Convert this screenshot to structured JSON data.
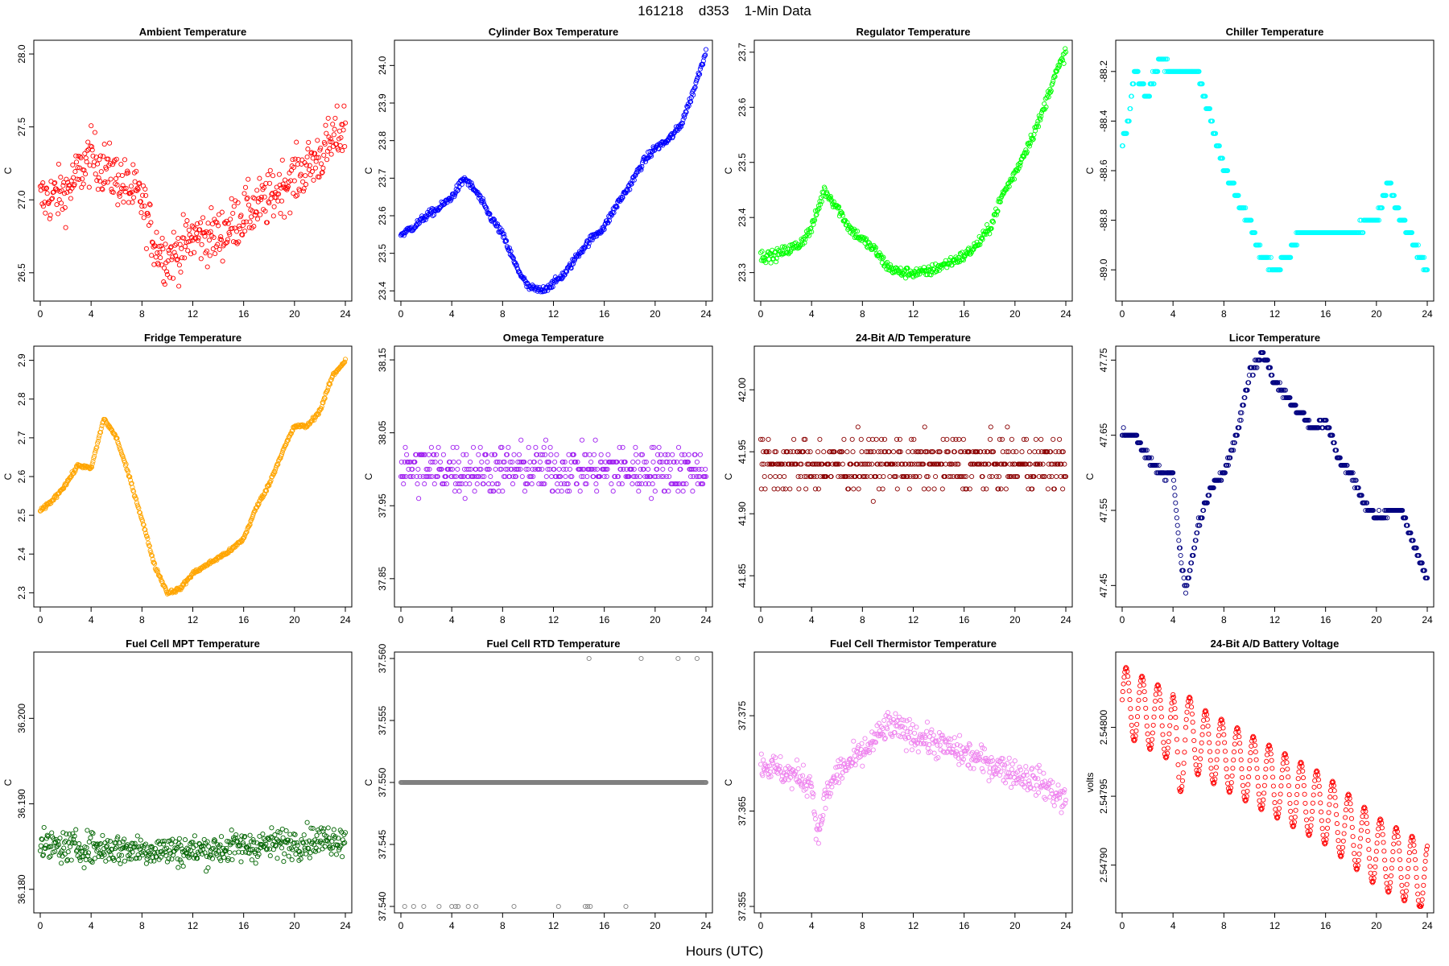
{
  "page": {
    "title": "161218    d353    1-Min Data",
    "xlabel": "Hours (UTC)"
  },
  "chart_data": [
    {
      "type": "scatter",
      "id": "ambient",
      "title": "Ambient Temperature",
      "ylabel": "C",
      "color": "#ff0000",
      "xlim": [
        0,
        24
      ],
      "ylim": [
        26.35,
        28.05
      ],
      "xticks": [
        0,
        4,
        8,
        12,
        16,
        20,
        24
      ],
      "yticks": [
        26.5,
        27.0,
        27.5,
        28.0
      ],
      "ytick_labels": [
        "26.5",
        "27.0",
        "27.5",
        "28.0"
      ],
      "series": [
        {
          "name": "Ambient",
          "x": [
            0,
            2,
            4,
            6,
            8,
            9,
            10,
            11,
            12,
            14,
            16,
            18,
            19,
            20,
            22,
            24
          ],
          "y": [
            27.0,
            27.05,
            27.3,
            27.15,
            27.0,
            26.7,
            26.6,
            26.65,
            26.75,
            26.75,
            26.9,
            27.0,
            27.1,
            27.15,
            27.3,
            27.5
          ]
        }
      ],
      "noise": 0.22,
      "quant": 0,
      "clamp": [
        26.35,
        28.05
      ]
    },
    {
      "type": "scatter",
      "id": "cylinder",
      "title": "Cylinder Box Temperature",
      "ylabel": "C",
      "color": "#0000ff",
      "xlim": [
        0,
        24
      ],
      "ylim": [
        23.39,
        24.05
      ],
      "xticks": [
        0,
        4,
        8,
        12,
        16,
        20,
        24
      ],
      "yticks": [
        23.4,
        23.5,
        23.6,
        23.7,
        23.8,
        23.9,
        24.0
      ],
      "ytick_labels": [
        "23.4",
        "23.5",
        "23.6",
        "23.7",
        "23.8",
        "23.9",
        "24.0"
      ],
      "series": [
        {
          "name": "Cylinder Box",
          "x": [
            0,
            1,
            2,
            3,
            4,
            5,
            6,
            7,
            8,
            9,
            10,
            11,
            12,
            13,
            14,
            15,
            16,
            17,
            18,
            19,
            20,
            21,
            22,
            23,
            24
          ],
          "y": [
            23.55,
            23.57,
            23.6,
            23.62,
            23.65,
            23.7,
            23.66,
            23.6,
            23.55,
            23.47,
            23.41,
            23.4,
            23.42,
            23.45,
            23.5,
            23.54,
            23.57,
            23.63,
            23.68,
            23.74,
            23.78,
            23.8,
            23.84,
            23.93,
            24.04
          ]
        }
      ],
      "noise": 0.012,
      "quant": 0,
      "clamp": [
        23.39,
        24.05
      ]
    },
    {
      "type": "scatter",
      "id": "regulator",
      "title": "Regulator Temperature",
      "ylabel": "C",
      "color": "#00ff00",
      "xlim": [
        0,
        24
      ],
      "ylim": [
        23.26,
        23.71
      ],
      "xticks": [
        0,
        4,
        8,
        12,
        16,
        20,
        24
      ],
      "yticks": [
        23.3,
        23.4,
        23.5,
        23.6,
        23.7
      ],
      "ytick_labels": [
        "23.3",
        "23.4",
        "23.5",
        "23.6",
        "23.7"
      ],
      "series": [
        {
          "name": "Regulator",
          "x": [
            0,
            1,
            2,
            3,
            4,
            5,
            6,
            7,
            8,
            9,
            10,
            11,
            12,
            13,
            14,
            15,
            16,
            17,
            18,
            19,
            20,
            21,
            22,
            23,
            24
          ],
          "y": [
            23.33,
            23.33,
            23.34,
            23.35,
            23.38,
            23.45,
            23.42,
            23.38,
            23.36,
            23.34,
            23.31,
            23.3,
            23.3,
            23.3,
            23.31,
            23.32,
            23.33,
            23.35,
            23.38,
            23.44,
            23.48,
            23.53,
            23.58,
            23.65,
            23.7
          ]
        }
      ],
      "noise": 0.012,
      "quant": 0,
      "clamp": [
        23.26,
        23.71
      ]
    },
    {
      "type": "scatter",
      "id": "chiller",
      "title": "Chiller Temperature",
      "ylabel": "C",
      "color": "#00ffff",
      "xlim": [
        0,
        24
      ],
      "ylim": [
        -89.1,
        -88.1
      ],
      "xticks": [
        0,
        4,
        8,
        12,
        16,
        20,
        24
      ],
      "yticks": [
        -89.0,
        -88.8,
        -88.6,
        -88.4,
        -88.2
      ],
      "ytick_labels": [
        "-89.0",
        "-88.8",
        "-88.6",
        "-88.4",
        "-88.2"
      ],
      "series": [
        {
          "name": "Chiller",
          "x": [
            0,
            0.5,
            1,
            2,
            3,
            4,
            5,
            6,
            6.5,
            7,
            7.5,
            8,
            9,
            10,
            11,
            12,
            13,
            14,
            16,
            18,
            20,
            21,
            22,
            23,
            24
          ],
          "y": [
            -88.5,
            -88.4,
            -88.2,
            -88.3,
            -88.15,
            -88.2,
            -88.2,
            -88.2,
            -88.3,
            -88.4,
            -88.5,
            -88.6,
            -88.7,
            -88.8,
            -88.95,
            -89.0,
            -88.95,
            -88.85,
            -88.85,
            -88.85,
            -88.8,
            -88.65,
            -88.8,
            -88.9,
            -89.0
          ]
        }
      ],
      "noise": 0.02,
      "quant": 0.05,
      "clamp": [
        -89.1,
        -88.1
      ]
    },
    {
      "type": "scatter",
      "id": "fridge",
      "title": "Fridge Temperature",
      "ylabel": "C",
      "color": "#ffa500",
      "xlim": [
        0,
        24
      ],
      "ylim": [
        2.28,
        2.92
      ],
      "xticks": [
        0,
        4,
        8,
        12,
        16,
        20,
        24
      ],
      "yticks": [
        2.3,
        2.4,
        2.5,
        2.6,
        2.7,
        2.8,
        2.9
      ],
      "ytick_labels": [
        "2.3",
        "2.4",
        "2.5",
        "2.6",
        "2.7",
        "2.8",
        "2.9"
      ],
      "series": [
        {
          "name": "Fridge",
          "x": [
            0,
            1,
            2,
            3,
            4,
            5,
            6,
            7,
            8,
            9,
            10,
            11,
            12,
            13,
            14,
            15,
            16,
            17,
            18,
            19,
            20,
            21,
            22,
            23,
            24
          ],
          "y": [
            2.51,
            2.54,
            2.58,
            2.63,
            2.62,
            2.75,
            2.7,
            2.6,
            2.49,
            2.37,
            2.3,
            2.31,
            2.35,
            2.37,
            2.39,
            2.41,
            2.44,
            2.52,
            2.58,
            2.66,
            2.73,
            2.73,
            2.77,
            2.86,
            2.9
          ]
        }
      ],
      "noise": 0.006,
      "quant": 0,
      "clamp": [
        2.28,
        2.92
      ]
    },
    {
      "type": "scatter",
      "id": "omega",
      "title": "Omega Temperature",
      "ylabel": "C",
      "color": "#a020f0",
      "xlim": [
        0,
        24
      ],
      "ylim": [
        37.82,
        38.16
      ],
      "xticks": [
        0,
        4,
        8,
        12,
        16,
        20,
        24
      ],
      "yticks": [
        37.85,
        37.95,
        38.05,
        38.15
      ],
      "ytick_labels": [
        "37.85",
        "37.95",
        "38.05",
        "38.15"
      ],
      "series": [
        {
          "name": "Omega",
          "x": [
            0,
            24
          ],
          "y": [
            38.0,
            38.0
          ]
        }
      ],
      "noise": 0.04,
      "quant": 0.01,
      "clamp": [
        37.82,
        38.16
      ]
    },
    {
      "type": "scatter",
      "id": "ad24",
      "title": "24-Bit A/D Temperature",
      "ylabel": "C",
      "color": "#8b0000",
      "xlim": [
        0,
        24
      ],
      "ylim": [
        41.83,
        42.03
      ],
      "xticks": [
        0,
        4,
        8,
        12,
        16,
        20,
        24
      ],
      "yticks": [
        41.85,
        41.9,
        41.95,
        42.0
      ],
      "ytick_labels": [
        "41.85",
        "41.90",
        "41.95",
        "42.00"
      ],
      "series": [
        {
          "name": "24-Bit A/D",
          "x": [
            0,
            24
          ],
          "y": [
            41.94,
            41.94
          ]
        }
      ],
      "noise": 0.025,
      "quant": 0.01,
      "clamp": [
        41.83,
        42.03
      ]
    },
    {
      "type": "scatter",
      "id": "licor",
      "title": "Licor Temperature",
      "ylabel": "C",
      "color": "#000080",
      "xlim": [
        0,
        24
      ],
      "ylim": [
        47.43,
        47.76
      ],
      "xticks": [
        0,
        4,
        8,
        12,
        16,
        20,
        24
      ],
      "yticks": [
        47.45,
        47.55,
        47.65,
        47.75
      ],
      "ytick_labels": [
        "47.45",
        "47.55",
        "47.65",
        "47.75"
      ],
      "series": [
        {
          "name": "Licor",
          "x": [
            0,
            1,
            2,
            3,
            4,
            4.5,
            5,
            6,
            7,
            8,
            9,
            10,
            11,
            12,
            13,
            14,
            15,
            16,
            17,
            18,
            19,
            20,
            21,
            22,
            23,
            24
          ],
          "y": [
            47.65,
            47.65,
            47.62,
            47.6,
            47.6,
            47.5,
            47.44,
            47.53,
            47.58,
            47.6,
            47.65,
            47.73,
            47.76,
            47.72,
            47.7,
            47.68,
            47.66,
            47.67,
            47.62,
            47.6,
            47.56,
            47.54,
            47.55,
            47.55,
            47.5,
            47.46
          ]
        }
      ],
      "noise": 0.006,
      "quant": 0.01,
      "clamp": [
        47.43,
        47.76
      ]
    },
    {
      "type": "scatter",
      "id": "fcmpt",
      "title": "Fuel Cell MPT Temperature",
      "ylabel": "C",
      "color": "#006400",
      "xlim": [
        0,
        24
      ],
      "ylim": [
        36.178,
        36.207
      ],
      "xticks": [
        0,
        4,
        8,
        12,
        16,
        20,
        24
      ],
      "yticks": [
        36.18,
        36.19,
        36.2
      ],
      "ytick_labels": [
        "36.180",
        "36.190",
        "36.200"
      ],
      "series": [
        {
          "name": "Fuel Cell MPT",
          "x": [
            0,
            12,
            24
          ],
          "y": [
            36.185,
            36.1845,
            36.186
          ]
        }
      ],
      "noise": 0.0022,
      "quant": 0,
      "clamp": [
        36.178,
        36.207
      ]
    },
    {
      "type": "scatter",
      "id": "fcrtd",
      "title": "Fuel Cell RTD Temperature",
      "ylabel": "C",
      "color": "#808080",
      "xlim": [
        0,
        24
      ],
      "ylim": [
        37.54,
        37.56
      ],
      "xticks": [
        0,
        4,
        8,
        12,
        16,
        20,
        24
      ],
      "yticks": [
        37.54,
        37.545,
        37.55,
        37.555,
        37.56
      ],
      "ytick_labels": [
        "37.540",
        "37.545",
        "37.550",
        "37.555",
        "37.560"
      ],
      "series": [
        {
          "name": "Fuel Cell RTD",
          "x": [
            0,
            24
          ],
          "y": [
            37.55,
            37.55
          ]
        }
      ],
      "noise": 0,
      "quant": 0,
      "clamp": [
        37.54,
        37.56
      ]
    },
    {
      "type": "scatter",
      "id": "fcthm",
      "title": "Fuel Cell Thermistor Temperature",
      "ylabel": "C",
      "color": "#ee82ee",
      "xlim": [
        0,
        24
      ],
      "ylim": [
        37.355,
        37.381
      ],
      "xticks": [
        0,
        4,
        8,
        12,
        16,
        20,
        24
      ],
      "yticks": [
        37.355,
        37.365,
        37.375
      ],
      "ytick_labels": [
        "37.355",
        "37.365",
        "37.375"
      ],
      "series": [
        {
          "name": "Fuel Cell Thermistor",
          "x": [
            0,
            2,
            4,
            4.5,
            5,
            6,
            8,
            10,
            12,
            14,
            16,
            18,
            20,
            22,
            24
          ],
          "y": [
            37.37,
            37.369,
            37.368,
            37.362,
            37.366,
            37.369,
            37.371,
            37.374,
            37.373,
            37.372,
            37.371,
            37.37,
            37.369,
            37.368,
            37.366
          ]
        }
      ],
      "noise": 0.0018,
      "quant": 0,
      "clamp": [
        37.355,
        37.381
      ]
    },
    {
      "type": "scatter",
      "id": "battery",
      "title": "24-Bit A/D Battery Voltage",
      "ylabel": "volts",
      "color": "#ff0000",
      "xlim": [
        0,
        24
      ],
      "ylim": [
        2.54787,
        2.54805
      ],
      "xticks": [
        0,
        4,
        8,
        12,
        16,
        20,
        24
      ],
      "yticks": [
        2.5479,
        2.54795,
        2.548
      ],
      "ytick_labels": [
        "2.54790",
        "2.54795",
        "2.54800"
      ],
      "series": [
        {
          "name": "Battery",
          "x": [
            0,
            4,
            4.5,
            5,
            6,
            8,
            12,
            16,
            20,
            24
          ],
          "y": [
            2.54802,
            2.548,
            2.54797,
            2.548,
            2.54799,
            2.54798,
            2.54796,
            2.54794,
            2.54791,
            2.54789
          ]
        }
      ],
      "noise": 0,
      "quant": 0,
      "clamp": [
        2.54787,
        2.54805
      ]
    }
  ],
  "rtd_outliers": {
    "high_x": [
      14.8,
      18.9,
      21.8,
      23.3
    ],
    "low_x": [
      0.3,
      1.0,
      1.8,
      3.0,
      4.0,
      4.3,
      4.5,
      5.3,
      5.9,
      8.9,
      12.4,
      14.5,
      14.7,
      14.9,
      17.7
    ]
  }
}
